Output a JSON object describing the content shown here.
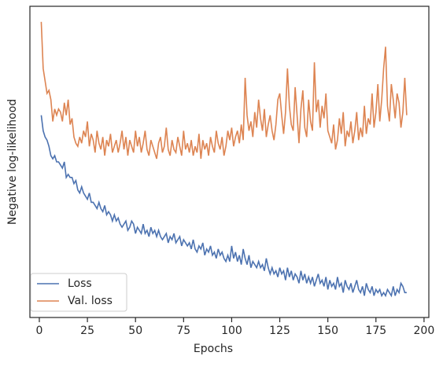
{
  "chart_data": {
    "type": "line",
    "xlabel": "Epochs",
    "ylabel": "Negative log-likelihood",
    "x": [
      1,
      2,
      3,
      4,
      5,
      6,
      7,
      8,
      9,
      10,
      11,
      12,
      13,
      14,
      15,
      16,
      17,
      18,
      19,
      20,
      21,
      22,
      23,
      24,
      25,
      26,
      27,
      28,
      29,
      30,
      31,
      32,
      33,
      34,
      35,
      36,
      37,
      38,
      39,
      40,
      41,
      42,
      43,
      44,
      45,
      46,
      47,
      48,
      49,
      50,
      51,
      52,
      53,
      54,
      55,
      56,
      57,
      58,
      59,
      60,
      61,
      62,
      63,
      64,
      65,
      66,
      67,
      68,
      69,
      70,
      71,
      72,
      73,
      74,
      75,
      76,
      77,
      78,
      79,
      80,
      81,
      82,
      83,
      84,
      85,
      86,
      87,
      88,
      89,
      90,
      91,
      92,
      93,
      94,
      95,
      96,
      97,
      98,
      99,
      100,
      101,
      102,
      103,
      104,
      105,
      106,
      107,
      108,
      109,
      110,
      111,
      112,
      113,
      114,
      115,
      116,
      117,
      118,
      119,
      120,
      121,
      122,
      123,
      124,
      125,
      126,
      127,
      128,
      129,
      130,
      131,
      132,
      133,
      134,
      135,
      136,
      137,
      138,
      139,
      140,
      141,
      142,
      143,
      144,
      145,
      146,
      147,
      148,
      149,
      150,
      151,
      152,
      153,
      154,
      155,
      156,
      157,
      158,
      159,
      160,
      161,
      162,
      163,
      164,
      165,
      166,
      167,
      168,
      169,
      170,
      171,
      172,
      173,
      174,
      175,
      176,
      177,
      178,
      179,
      180,
      181,
      182,
      183,
      184,
      185,
      186,
      187,
      188,
      189,
      190,
      191
    ],
    "series": [
      {
        "name": "Loss",
        "color": "#4c72b0",
        "values": [
          65,
          60,
          58,
          57,
          55,
          52,
          51,
          52,
          50,
          50,
          49,
          48,
          50,
          45,
          46,
          45,
          45,
          43,
          44,
          41,
          40,
          42,
          40,
          39,
          38,
          40,
          37,
          37,
          36,
          35,
          37,
          35,
          34,
          36,
          33,
          34,
          33,
          31,
          33,
          31,
          32,
          30,
          29,
          30,
          31,
          28,
          29,
          31,
          30,
          27,
          29,
          28,
          27,
          30,
          27,
          28,
          26,
          29,
          27,
          28,
          26,
          28,
          26,
          25,
          26,
          27,
          24,
          26,
          25,
          27,
          24,
          25,
          26,
          23,
          25,
          24,
          23,
          24,
          22,
          25,
          22,
          21,
          23,
          22,
          24,
          20,
          22,
          21,
          23,
          20,
          21,
          19,
          22,
          20,
          21,
          19,
          18,
          20,
          18,
          23,
          19,
          21,
          18,
          20,
          17,
          22,
          19,
          17,
          20,
          16,
          18,
          17,
          16,
          18,
          16,
          17,
          15,
          19,
          16,
          14,
          16,
          14,
          15,
          13,
          16,
          14,
          15,
          12,
          16,
          13,
          15,
          12,
          14,
          13,
          11,
          15,
          12,
          14,
          11,
          13,
          11,
          13,
          10,
          12,
          14,
          11,
          12,
          10,
          13,
          9,
          12,
          10,
          11,
          9,
          13,
          10,
          11,
          8,
          12,
          10,
          9,
          11,
          8,
          10,
          12,
          9,
          8,
          10,
          7,
          11,
          9,
          8,
          10,
          7,
          9,
          8,
          9,
          7,
          8,
          7,
          9,
          8,
          7,
          10,
          7,
          9,
          8,
          11,
          10,
          8,
          8
        ]
      },
      {
        "name": "Val. loss",
        "color": "#dd8452",
        "values": [
          95,
          80,
          76,
          72,
          73,
          70,
          63,
          67,
          65,
          67,
          66,
          63,
          69,
          65,
          70,
          62,
          64,
          58,
          56,
          55,
          58,
          56,
          60,
          58,
          63,
          55,
          59,
          57,
          53,
          60,
          56,
          54,
          58,
          52,
          57,
          55,
          59,
          53,
          55,
          57,
          53,
          56,
          60,
          54,
          58,
          52,
          57,
          55,
          53,
          60,
          55,
          58,
          53,
          56,
          60,
          54,
          52,
          57,
          55,
          53,
          51,
          56,
          58,
          53,
          55,
          61,
          54,
          52,
          57,
          54,
          53,
          58,
          55,
          52,
          60,
          54,
          56,
          53,
          57,
          52,
          55,
          53,
          59,
          51,
          57,
          54,
          56,
          52,
          58,
          55,
          53,
          60,
          56,
          54,
          58,
          52,
          55,
          60,
          57,
          61,
          55,
          58,
          60,
          56,
          62,
          57,
          77,
          65,
          60,
          63,
          58,
          66,
          61,
          70,
          64,
          60,
          67,
          58,
          62,
          65,
          60,
          57,
          62,
          70,
          72,
          65,
          59,
          66,
          80,
          68,
          62,
          60,
          74,
          65,
          56,
          67,
          73,
          61,
          58,
          70,
          63,
          60,
          82,
          66,
          70,
          61,
          68,
          64,
          72,
          60,
          58,
          56,
          62,
          54,
          57,
          64,
          59,
          66,
          55,
          60,
          58,
          63,
          56,
          60,
          66,
          57,
          61,
          58,
          68,
          59,
          64,
          62,
          72,
          61,
          66,
          75,
          63,
          70,
          80,
          87,
          68,
          63,
          75,
          70,
          64,
          72,
          69,
          61,
          66,
          77,
          65
        ]
      }
    ],
    "xlim": [
      -4.9,
      202.5
    ],
    "xticks": [
      0,
      25,
      50,
      75,
      100,
      125,
      150,
      175,
      200
    ],
    "ylim": [
      0,
      100
    ],
    "legend": "lower left"
  }
}
